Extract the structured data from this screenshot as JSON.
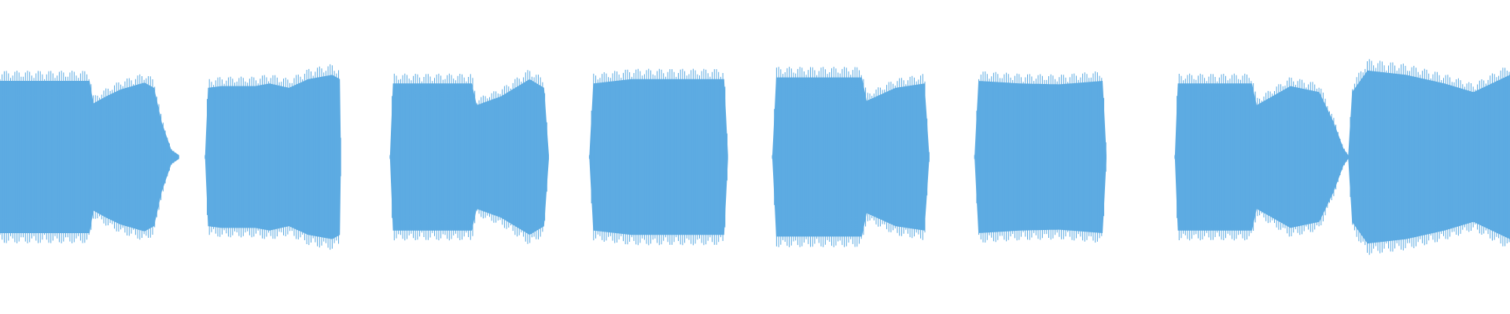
{
  "color": "#5dabe2"
}
